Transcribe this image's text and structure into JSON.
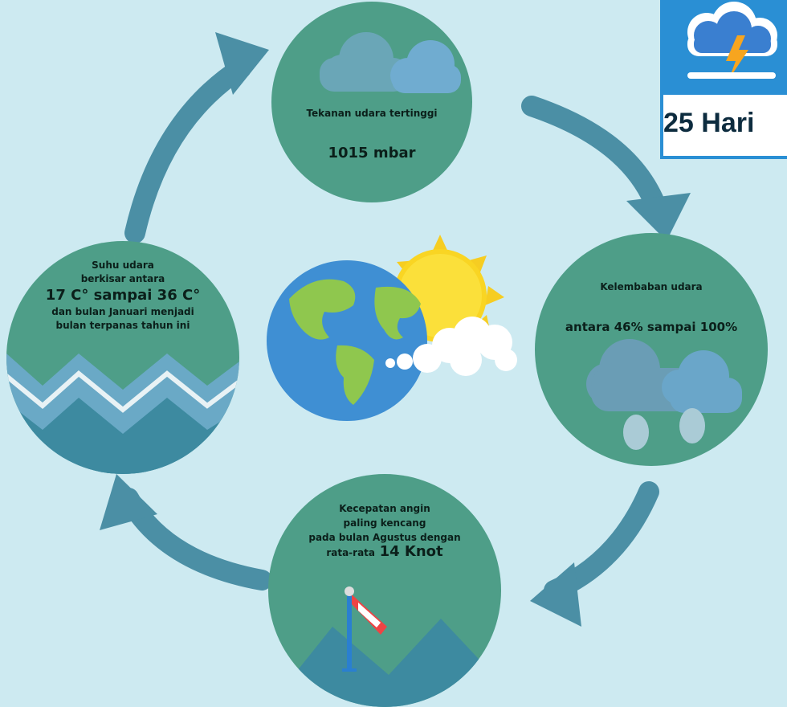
{
  "cards": {
    "pressure": {
      "title": "Tekanan udara tertinggi",
      "value": "1015 mbar"
    },
    "humidity": {
      "title": "Kelembaban udara",
      "value": "antara 46% sampai 100%"
    },
    "wind": {
      "line1": "Kecepatan angin",
      "line2": "paling kencang",
      "line3": "pada bulan Agustus dengan",
      "line4_prefix": "rata-rata",
      "line4_value": "14 Knot"
    },
    "temperature": {
      "line1": "Suhu udara",
      "line2": "berkisar antara",
      "line3": "17 C° sampai 36 C°",
      "line4": "dan bulan Januari menjadi",
      "line5": "bulan terpanas tahun ini"
    }
  },
  "badge": {
    "text": "25 Hari"
  },
  "icons": [
    "cloud-icon",
    "rain-cloud-icon",
    "windsock-icon",
    "wave-icon",
    "earth-icon",
    "sun-icon",
    "storm-icon"
  ],
  "colors": {
    "background": "#cdeaf1",
    "circle": "#4e9e88",
    "arrow": "#4b8fa5",
    "badge": "#2a8fd4"
  }
}
